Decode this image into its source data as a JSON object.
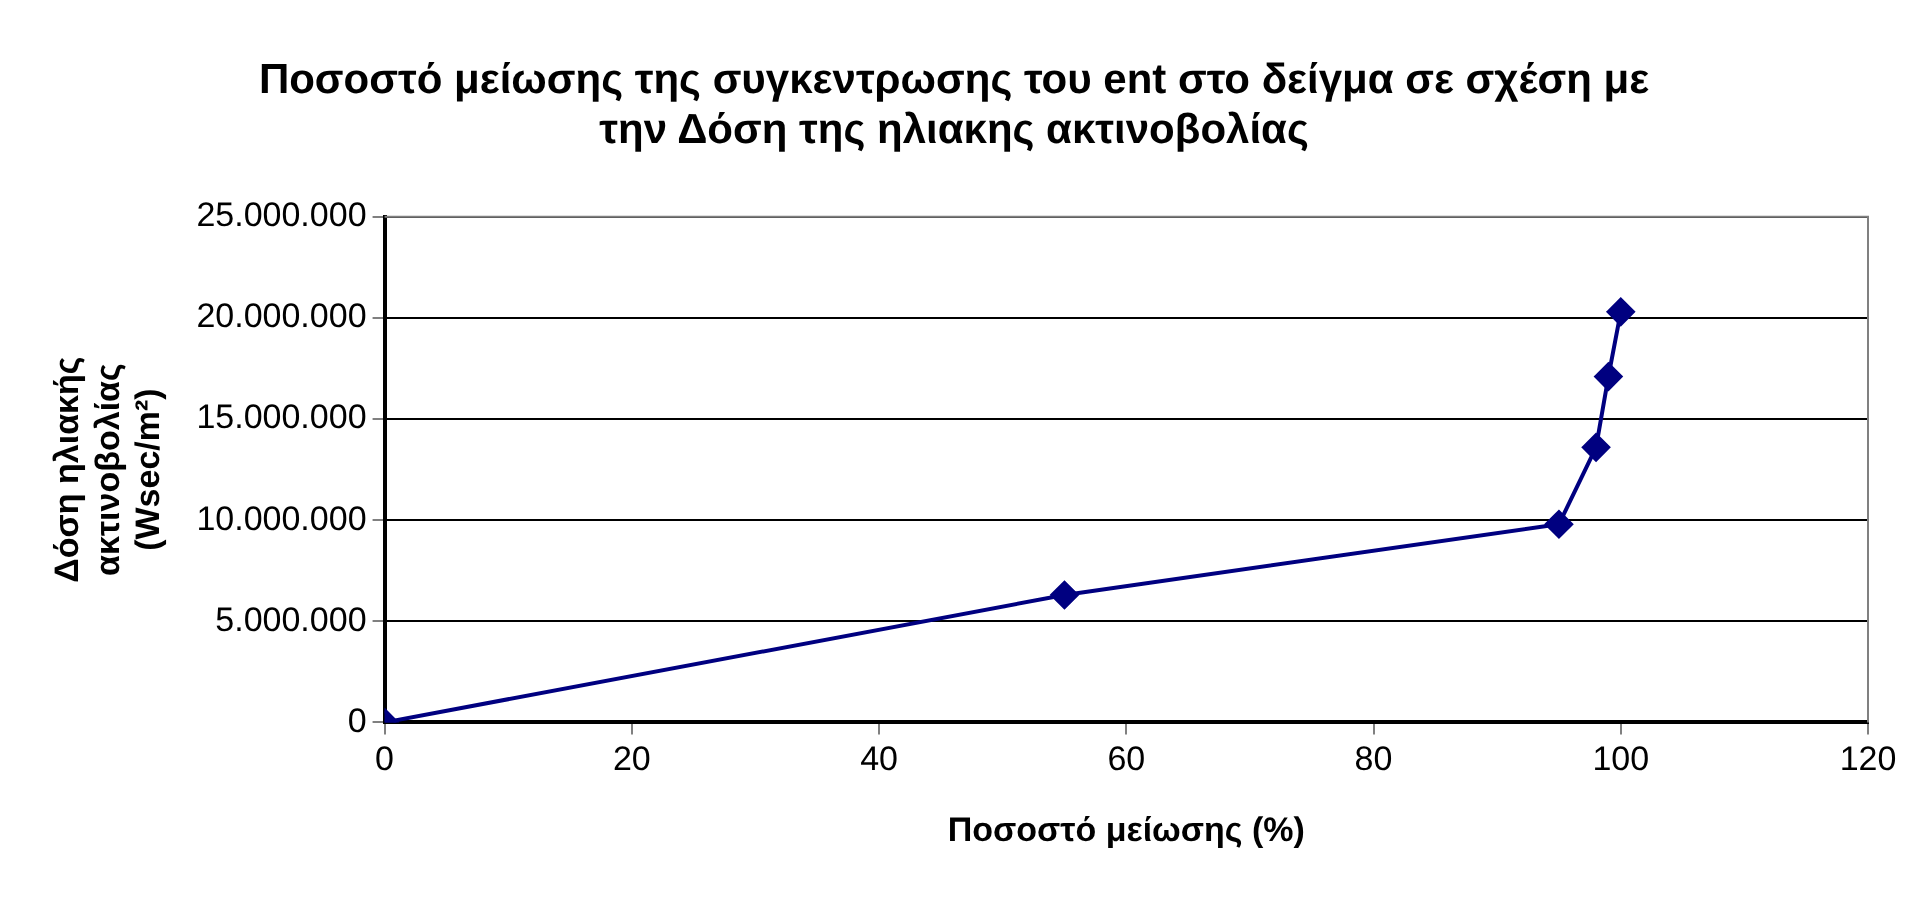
{
  "chart_data": {
    "type": "line",
    "title": "Ποσοστό μείωσης της συγκεντρωσης του ent στο δείγμα σε σχέση με την Δόση της ηλιακης ακτινοβολίας",
    "xlabel": "Ποσοστό μείωσης (%)",
    "ylabel": "Δόση ηλιακής ακτινοβολίας (Wsec/m²)",
    "x": [
      0,
      55,
      95,
      98,
      99,
      100
    ],
    "series": [
      {
        "color": "#000080",
        "values": [
          0,
          6300000,
          9800000,
          13600000,
          17100000,
          20300000
        ]
      }
    ],
    "xlim": [
      0,
      120
    ],
    "xticks": [
      0,
      20,
      40,
      60,
      80,
      100,
      120
    ],
    "ylim": [
      0,
      25000000
    ],
    "yticks": [
      0,
      {
        "value": 5000000,
        "label": "5.000.000"
      },
      {
        "value": 10000000,
        "label": "10.000.000"
      },
      {
        "value": 15000000,
        "label": "15.000.000"
      },
      {
        "value": 20000000,
        "label": "20.000.000"
      },
      {
        "value": 25000000,
        "label": "25.000.000"
      }
    ],
    "grid": "y",
    "legend": false,
    "marker": "diamond",
    "line_style": "solid"
  }
}
